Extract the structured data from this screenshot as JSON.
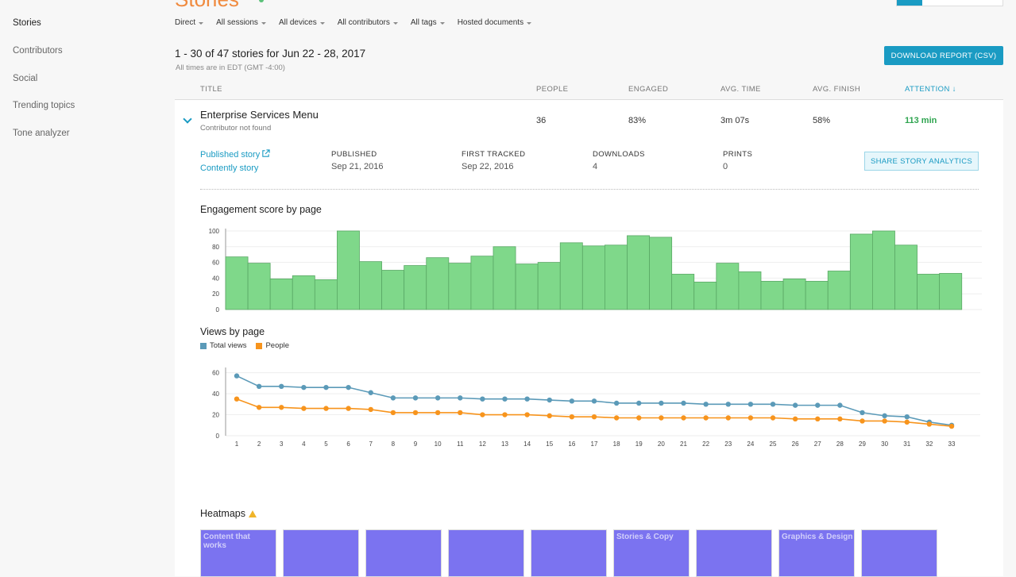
{
  "sidebar": {
    "items": [
      {
        "label": "Stories"
      },
      {
        "label": "Contributors"
      },
      {
        "label": "Social"
      },
      {
        "label": "Trending topics"
      },
      {
        "label": "Tone analyzer"
      }
    ]
  },
  "header": {
    "title": "Stories"
  },
  "filters": [
    "Direct",
    "All sessions",
    "All devices",
    "All contributors",
    "All tags",
    "Hosted documents"
  ],
  "summary": {
    "text": "1 - 30 of 47 stories for Jun 22 - 28, 2017",
    "timezone": "All times are in EDT (GMT -4:00)",
    "download_label": "DOWNLOAD REPORT (CSV)"
  },
  "table": {
    "columns": [
      "TITLE",
      "PEOPLE",
      "ENGAGED",
      "AVG. TIME",
      "AVG. FINISH",
      "ATTENTION"
    ],
    "row": {
      "title": "Enterprise Services Menu",
      "subtitle": "Contributor not found",
      "people": "36",
      "engaged": "83%",
      "avg_time": "3m 07s",
      "avg_finish": "58%",
      "attention": "113 min"
    }
  },
  "details": {
    "published_link": "Published story",
    "contently_link": "Contently story",
    "published_label": "PUBLISHED",
    "published_value": "Sep 21, 2016",
    "first_tracked_label": "FIRST TRACKED",
    "first_tracked_value": "Sep 22, 2016",
    "downloads_label": "DOWNLOADS",
    "downloads_value": "4",
    "prints_label": "PRINTS",
    "prints_value": "0",
    "share_label": "SHARE STORY ANALYTICS"
  },
  "colors": {
    "accent": "#1a9bc3",
    "bar_fill": "#7fd88a",
    "total_views": "#5b9ab8",
    "people": "#f7941d",
    "attention": "#2ea44f"
  },
  "chart_data": [
    {
      "type": "bar",
      "title": "Engagement score by page",
      "ylim": [
        0,
        100
      ],
      "yticks": [
        0,
        20,
        40,
        60,
        80,
        100
      ],
      "values": [
        67,
        59,
        39,
        43,
        38,
        100,
        61,
        50,
        56,
        66,
        59,
        68,
        80,
        58,
        60,
        85,
        81,
        82,
        94,
        92,
        45,
        35,
        59,
        48,
        36,
        39,
        36,
        49,
        96,
        100,
        82,
        45,
        46
      ]
    },
    {
      "type": "line",
      "title": "Views by page",
      "ylim": [
        0,
        65
      ],
      "yticks": [
        0,
        20,
        40,
        60
      ],
      "x": [
        1,
        2,
        3,
        4,
        5,
        6,
        7,
        8,
        9,
        10,
        11,
        12,
        13,
        14,
        15,
        16,
        17,
        18,
        19,
        20,
        21,
        22,
        23,
        24,
        25,
        26,
        27,
        28,
        29,
        30,
        31,
        32,
        33
      ],
      "series": [
        {
          "name": "Total views",
          "values": [
            57,
            47,
            47,
            46,
            46,
            46,
            41,
            36,
            36,
            36,
            36,
            35,
            35,
            35,
            34,
            33,
            33,
            31,
            31,
            31,
            31,
            30,
            30,
            30,
            30,
            29,
            29,
            29,
            22,
            19,
            18,
            13,
            10
          ]
        },
        {
          "name": "People",
          "values": [
            35,
            27,
            27,
            26,
            26,
            26,
            25,
            22,
            22,
            22,
            22,
            20,
            20,
            20,
            19,
            18,
            18,
            17,
            17,
            17,
            17,
            17,
            17,
            17,
            17,
            16,
            16,
            16,
            14,
            14,
            13,
            11,
            9
          ]
        }
      ]
    }
  ],
  "heatmaps": {
    "title": "Heatmaps",
    "thumbs": [
      {
        "label": "Content that works"
      },
      {
        "label": ""
      },
      {
        "label": ""
      },
      {
        "label": ""
      },
      {
        "label": ""
      },
      {
        "label": "Stories & Copy"
      },
      {
        "label": ""
      },
      {
        "label": "Graphics & Design"
      },
      {
        "label": ""
      }
    ]
  }
}
